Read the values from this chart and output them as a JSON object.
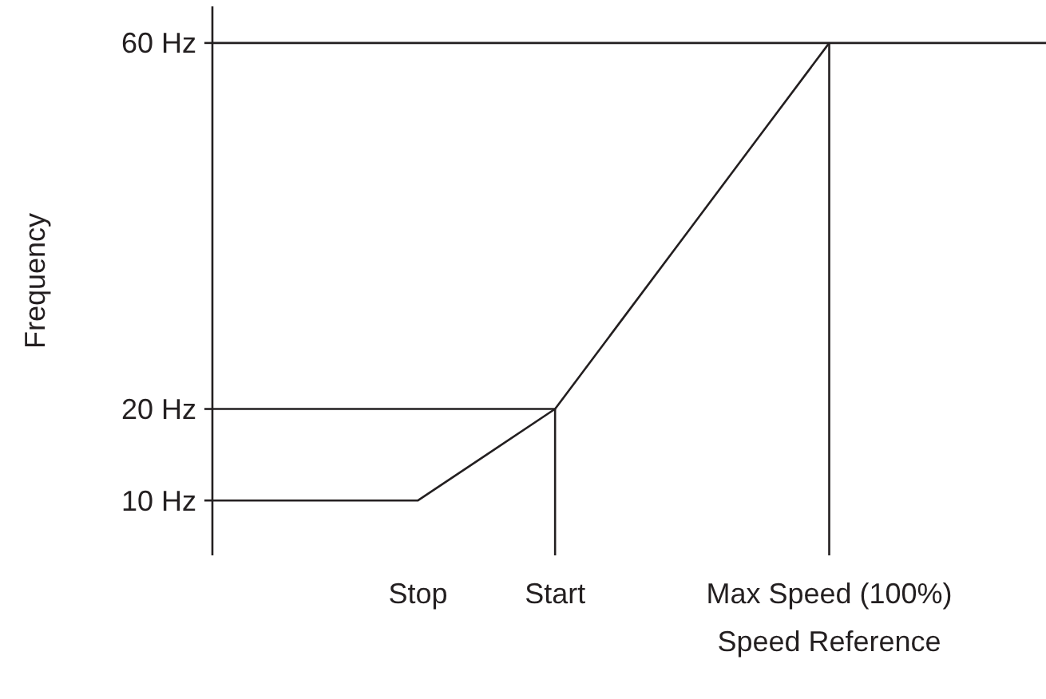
{
  "chart_data": {
    "type": "line",
    "xlabel": "Speed Reference",
    "ylabel": "Frequency",
    "categories": [
      null,
      null,
      null,
      "Stop",
      null,
      "Start",
      null,
      null,
      null,
      "Max Speed (100%)",
      null,
      null,
      null
    ],
    "ylim": [
      4,
      64
    ],
    "yticks": [
      {
        "value": 10,
        "label": "10 Hz"
      },
      {
        "value": 20,
        "label": "20 Hz"
      },
      {
        "value": 60,
        "label": "60 Hz"
      }
    ],
    "series": [
      {
        "color": "#231f20",
        "values": [
          10,
          10,
          10,
          10,
          15,
          20,
          30,
          40,
          50,
          60,
          null,
          null,
          null
        ]
      },
      {
        "color": "#231f20",
        "values": [
          20,
          20,
          20,
          20,
          20,
          20,
          null,
          null,
          null,
          null,
          null,
          null,
          null
        ]
      }
    ],
    "ref_lines": [
      {
        "axis": "y",
        "value": 60,
        "color": "#231f20"
      },
      {
        "axis": "x",
        "value": "Start",
        "color": "#231f20"
      },
      {
        "axis": "x",
        "value": "Max Speed (100%)",
        "color": "#231f20"
      }
    ],
    "grid": false,
    "marker": "none",
    "line_style": "solid"
  }
}
